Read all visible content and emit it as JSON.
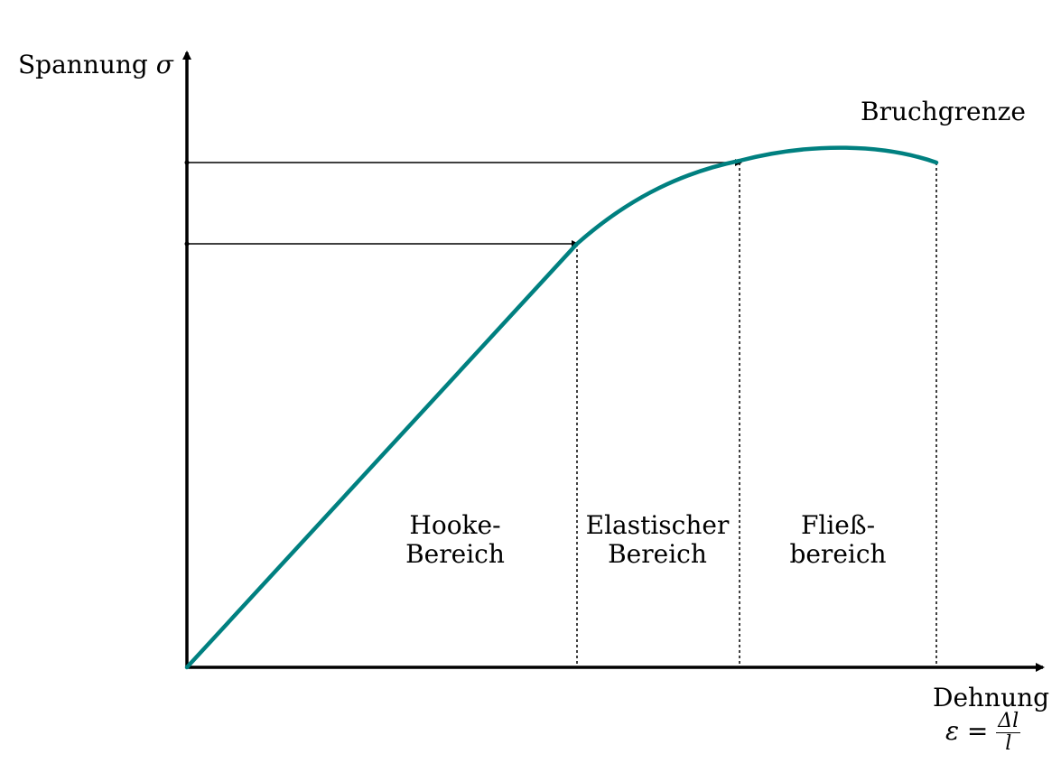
{
  "labels": {
    "y_axis": "Spannung",
    "y_symbol": "σ",
    "x_axis": "Dehnung",
    "x_formula_lhs": "ε =",
    "x_formula_num": "Δl",
    "x_formula_den": "l",
    "break_limit": "Bruchgrenze",
    "region_hooke_line1": "Hooke-",
    "region_hooke_line2": "Bereich",
    "region_elastic_line1": "Elastischer",
    "region_elastic_line2": "Bereich",
    "region_yield_line1": "Fließ-",
    "region_yield_line2": "bereich"
  },
  "colors": {
    "curve": "#008080",
    "axes": "#000000"
  }
}
